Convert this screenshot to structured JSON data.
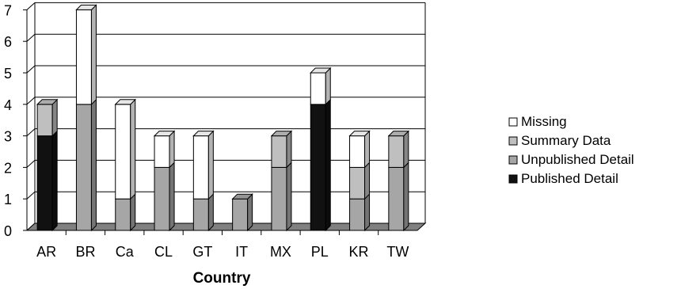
{
  "chart_data": {
    "type": "bar",
    "stacked": true,
    "three_d": true,
    "title": "",
    "xlabel": "Country",
    "ylabel": "",
    "ylim": [
      0,
      7
    ],
    "yticks": [
      0,
      1,
      2,
      3,
      4,
      5,
      6,
      7
    ],
    "grid": true,
    "legend_position": "right",
    "categories": [
      "AR",
      "BR",
      "Ca",
      "CL",
      "GT",
      "IT",
      "MX",
      "PL",
      "KR",
      "TW"
    ],
    "series": [
      {
        "name": "Published Detail",
        "color": "#111111",
        "values": [
          3,
          0,
          0,
          0,
          0,
          0,
          0,
          4,
          0,
          0
        ]
      },
      {
        "name": "Unpublished Detail",
        "color": "#a6a6a6",
        "values": [
          0,
          4,
          1,
          2,
          1,
          1,
          2,
          0,
          1,
          2
        ]
      },
      {
        "name": "Summary Data",
        "color": "#bfbfbf",
        "values": [
          1,
          0,
          0,
          0,
          0,
          0,
          1,
          0,
          1,
          1
        ]
      },
      {
        "name": "Missing",
        "color": "#ffffff",
        "values": [
          0,
          3,
          3,
          1,
          2,
          0,
          0,
          1,
          1,
          0
        ]
      }
    ],
    "legend_order": [
      "Missing",
      "Summary Data",
      "Unpublished Detail",
      "Published Detail"
    ],
    "floor_color": "#808080"
  }
}
